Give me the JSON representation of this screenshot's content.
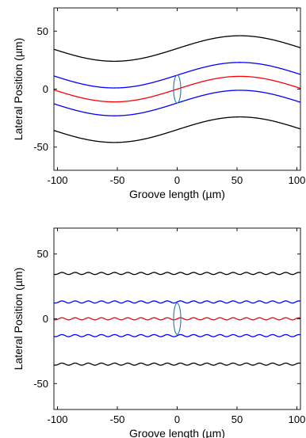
{
  "chart_data": [
    {
      "type": "line",
      "xlabel": "Groove length (µm)",
      "ylabel": "Lateral Position (µm)",
      "xlim": [
        -103,
        103
      ],
      "ylim": [
        -70,
        70
      ],
      "xticks": [
        -100,
        -50,
        0,
        50,
        100
      ],
      "yticks": [
        -50,
        0,
        50
      ],
      "grid": false,
      "series": [
        {
          "color": "#000000",
          "offset": 35,
          "amplitude": 11,
          "period": 210,
          "phase_deg": 0
        },
        {
          "color": "#0000ff",
          "offset": 12,
          "amplitude": 11,
          "period": 210,
          "phase_deg": 0
        },
        {
          "color": "#ff0000",
          "offset": 0,
          "amplitude": 11,
          "period": 210,
          "phase_deg": 0
        },
        {
          "color": "#0000ff",
          "offset": -12,
          "amplitude": 11,
          "period": 210,
          "phase_deg": 0
        },
        {
          "color": "#000000",
          "offset": -35,
          "amplitude": 11,
          "period": 210,
          "phase_deg": 0
        }
      ],
      "annotation": {
        "shape": "ellipse",
        "color": "#1f77b4",
        "cx": 0,
        "cy": 0,
        "rx": 3,
        "ry": 12
      }
    },
    {
      "type": "line",
      "xlabel": "Groove length (µm)",
      "ylabel": "Lateral Position (µm)",
      "xlim": [
        -103,
        103
      ],
      "ylim": [
        -70,
        70
      ],
      "xticks": [
        -100,
        -50,
        0,
        50,
        100
      ],
      "yticks": [
        -50,
        0,
        50
      ],
      "grid": false,
      "series": [
        {
          "color": "#000000",
          "offset": 35,
          "amplitude": 0.8,
          "period": 11,
          "phase_deg": 0
        },
        {
          "color": "#0000ff",
          "offset": 13,
          "amplitude": 0.8,
          "period": 11,
          "phase_deg": 0
        },
        {
          "color": "#ff0000",
          "offset": 0,
          "amplitude": 0.8,
          "period": 11,
          "phase_deg": 0
        },
        {
          "color": "#0000ff",
          "offset": -13,
          "amplitude": 0.8,
          "period": 11,
          "phase_deg": 0
        },
        {
          "color": "#000000",
          "offset": -35,
          "amplitude": 0.8,
          "period": 11,
          "phase_deg": 0
        }
      ],
      "annotation": {
        "shape": "ellipse",
        "color": "#1f77b4",
        "cx": 0,
        "cy": 0,
        "rx": 3,
        "ry": 12
      }
    }
  ]
}
